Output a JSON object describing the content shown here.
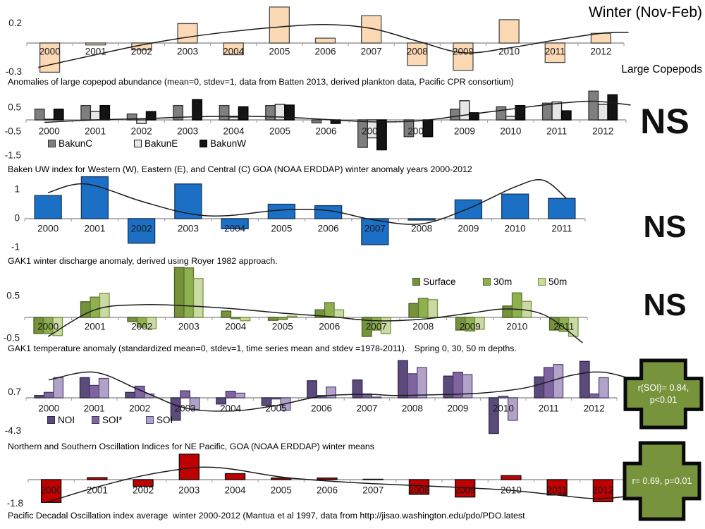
{
  "page": {
    "title": "Winter (Nov-Feb)",
    "series_label": "Large Copepods"
  },
  "chart_data": [
    {
      "id": "copepods",
      "type": "bar",
      "caption": "Anomalies of large copepod abundance (mean=0, stdev=1, data from Batten 2013, derived plankton data, Pacific CPR consortium)",
      "categories": [
        "2000",
        "2001",
        "2002",
        "2003",
        "2004",
        "2005",
        "2006",
        "2007",
        "2008",
        "2009",
        "2010",
        "2011",
        "2012"
      ],
      "series": [
        {
          "color": "#FBD9B4",
          "border": "#4D4D4D",
          "values": [
            -0.3,
            -0.02,
            -0.07,
            0.2,
            -0.12,
            0.37,
            0.05,
            0.28,
            -0.23,
            -0.28,
            0.24,
            -0.2,
            0.1
          ]
        }
      ],
      "yticks": [
        {
          "label": "0.2",
          "value": 0.2
        },
        {
          "label": "-0.3",
          "value": -0.3
        }
      ],
      "ylim": [
        -0.38,
        0.42
      ],
      "trend": [
        [
          1999.75,
          -0.25
        ],
        [
          2001,
          -0.12
        ],
        [
          2002,
          -0.02
        ],
        [
          2003,
          0.06
        ],
        [
          2004,
          0.12
        ],
        [
          2005,
          0.165
        ],
        [
          2006,
          0.19
        ],
        [
          2007,
          0.15
        ],
        [
          2008,
          0.02
        ],
        [
          2009,
          -0.1
        ],
        [
          2010,
          -0.05
        ],
        [
          2011,
          0.03
        ],
        [
          2012,
          0.1
        ],
        [
          2012.6,
          0.11
        ]
      ]
    },
    {
      "id": "bakun",
      "type": "bar",
      "caption": "Baken UW index for Western (W), Eastern (E), and Central (C) GOA (NOAA ERDDAP) winter anomaly years 2000-2012",
      "annotation": "NS",
      "categories": [
        "2000",
        "2001",
        "2002",
        "2003",
        "2004",
        "2005",
        "2006",
        "2007",
        "2008",
        "2009",
        "2010",
        "2011",
        "2012"
      ],
      "series": [
        {
          "name": "BakunC",
          "color": "#7F7F7F",
          "border": "#333333",
          "values": [
            0.45,
            0.6,
            0.25,
            0.6,
            0.6,
            0.6,
            -0.12,
            -1.15,
            -0.7,
            0.45,
            0.55,
            0.7,
            1.2
          ]
        },
        {
          "name": "BakunE",
          "color": "#E6E6E6",
          "border": "#1a1a1a",
          "values": [
            0.03,
            0.35,
            -0.15,
            0,
            0.12,
            0.65,
            0,
            -0.75,
            0,
            0.8,
            0.15,
            0.75,
            0.65
          ]
        },
        {
          "name": "BakunW",
          "color": "#141414",
          "border": "#000000",
          "values": [
            0.45,
            0.6,
            0.35,
            0.85,
            0.55,
            0.62,
            -0.15,
            -1.25,
            -0.7,
            0.3,
            0.6,
            0.38,
            1.05
          ]
        }
      ],
      "yticks": [
        {
          "label": "0.5",
          "value": 0.5
        },
        {
          "label": "-0.5",
          "value": -0.5
        },
        {
          "label": "-1.5",
          "value": -1.5
        }
      ],
      "ylim": [
        -1.6,
        1.35
      ],
      "trend": [
        [
          1999.9,
          -0.1
        ],
        [
          2001,
          0.0
        ],
        [
          2002,
          0.05
        ],
        [
          2003,
          0.12
        ],
        [
          2004,
          0.15
        ],
        [
          2005,
          0.12
        ],
        [
          2006,
          0.02
        ],
        [
          2007,
          -0.08
        ],
        [
          2008,
          -0.04
        ],
        [
          2009,
          0.2
        ],
        [
          2010,
          0.45
        ],
        [
          2011,
          0.68
        ],
        [
          2011.8,
          0.78
        ],
        [
          2012.6,
          0.62
        ]
      ]
    },
    {
      "id": "uw",
      "type": "bar",
      "caption": "GAK1 winter discharge anomaly, derived using Royer 1982 approach.",
      "annotation": "NS",
      "categories": [
        "2000",
        "2001",
        "2002",
        "2003",
        "2004",
        "2005",
        "2006",
        "2007",
        "2008",
        "2009",
        "2010",
        "2011"
      ],
      "series": [
        {
          "color": "#1B70C6",
          "border": "#16365C",
          "values": [
            0.8,
            1.45,
            -0.85,
            1.2,
            -0.35,
            0.5,
            0.45,
            -0.9,
            -0.05,
            0.65,
            0.85,
            0.7
          ]
        }
      ],
      "yticks": [
        {
          "label": "1",
          "value": 1
        },
        {
          "label": "0",
          "value": 0
        },
        {
          "label": "-1",
          "value": -1
        }
      ],
      "ylim": [
        -1.05,
        1.5
      ],
      "trend": [
        [
          2000,
          0.9
        ],
        [
          2000.8,
          1.2
        ],
        [
          2002,
          0.6
        ],
        [
          2003,
          0.18
        ],
        [
          2003.8,
          0.1
        ],
        [
          2005,
          0.3
        ],
        [
          2006,
          0.28
        ],
        [
          2007,
          -0.05
        ],
        [
          2008,
          -0.18
        ],
        [
          2009,
          0.35
        ],
        [
          2010,
          1.1
        ],
        [
          2010.6,
          1.33
        ],
        [
          2011.1,
          0.7
        ]
      ]
    },
    {
      "id": "temp",
      "type": "bar",
      "caption": "GAK1 temperature anomaly (standardized mean=0, stdev=1, time series mean and stdev =1978-2011).   Spring 0, 30, 50 m depths.",
      "annotation": "NS",
      "categories": [
        "2000",
        "2001",
        "2002",
        "2003",
        "2004",
        "2005",
        "2006",
        "2007",
        "2008",
        "2009",
        "2010",
        "2011"
      ],
      "series": [
        {
          "name": "Surface",
          "color": "#76933C",
          "border": "#4A5E24",
          "values": [
            -0.38,
            0.37,
            -0.1,
            1.18,
            0.15,
            -0.07,
            0.18,
            -0.45,
            0.33,
            -0.3,
            0.27,
            -0.3
          ]
        },
        {
          "name": "30m",
          "color": "#8FB04E",
          "border": "#5B7430",
          "values": [
            -0.38,
            0.48,
            -0.23,
            1.17,
            -0.03,
            -0.05,
            0.35,
            -0.3,
            0.45,
            -0.32,
            0.58,
            -0.33
          ]
        },
        {
          "name": "50m",
          "color": "#CBDAA4",
          "border": "#77933C",
          "values": [
            -0.43,
            0.57,
            -0.27,
            0.92,
            -0.08,
            0.03,
            0.18,
            -0.38,
            0.42,
            -0.28,
            0.38,
            -0.45
          ]
        }
      ],
      "yticks": [
        {
          "label": "0.5",
          "value": 0.5
        },
        {
          "label": "-0.5",
          "value": -0.5
        }
      ],
      "ylim": [
        -0.55,
        1.25
      ],
      "trend": [
        [
          2000,
          -0.45
        ],
        [
          2001,
          0.18
        ],
        [
          2002,
          0.3
        ],
        [
          2003,
          0.27
        ],
        [
          2004,
          0.2
        ],
        [
          2005,
          0.1
        ],
        [
          2006,
          0.02
        ],
        [
          2007,
          -0.08
        ],
        [
          2008,
          -0.04
        ],
        [
          2009,
          0.1
        ],
        [
          2009.8,
          0.2
        ],
        [
          2010.6,
          0.05
        ],
        [
          2011.4,
          -0.6
        ]
      ]
    },
    {
      "id": "osc",
      "type": "bar",
      "caption": "Northern and Southern Oscillation Indices for NE Pacific, GOA (NOAA ERDDAP) winter means",
      "annotation_badge": {
        "lines": [
          "r(SOI)= 0.84,",
          "p<0.01"
        ],
        "color": "#77933C"
      },
      "categories": [
        "2000",
        "2001",
        "2002",
        "2003",
        "2004",
        "2005",
        "2006",
        "2007",
        "2008",
        "2009",
        "2010",
        "2011",
        "2012"
      ],
      "series": [
        {
          "name": "NOI",
          "color": "#5D4A7D",
          "border": "#32284A",
          "values": [
            0.3,
            2.6,
            0.7,
            -2.9,
            -0.8,
            -1.0,
            2.2,
            2.3,
            4.8,
            2.8,
            -4.6,
            2.7,
            4.7
          ]
        },
        {
          "name": "SOI*",
          "color": "#8064A2",
          "border": "#433A5C",
          "values": [
            0.7,
            1.6,
            1.5,
            0.9,
            0.85,
            -0.15,
            0.3,
            0.5,
            3.1,
            3.3,
            0.2,
            3.9,
            0.5
          ]
        },
        {
          "name": "SOI",
          "color": "#B3A2C8",
          "border": "#57497A",
          "values": [
            2.6,
            2.5,
            0.5,
            -1.5,
            0.6,
            -1.6,
            1.4,
            0.1,
            3.9,
            3.0,
            -2.9,
            4.3,
            2.6
          ]
        }
      ],
      "yticks": [
        {
          "label": "0.7",
          "value": 0.7
        },
        {
          "label": "-4.3",
          "value": -4.3
        }
      ],
      "ylim": [
        -4.9,
        5.0
      ],
      "trend": [
        [
          2000,
          2.3
        ],
        [
          2001,
          3.3
        ],
        [
          2002,
          1.0
        ],
        [
          2003,
          -1.3
        ],
        [
          2004,
          -1.7
        ],
        [
          2005,
          -1.0
        ],
        [
          2006,
          0.2
        ],
        [
          2007,
          0.45
        ],
        [
          2007.6,
          0.3
        ],
        [
          2008.5,
          0.4
        ],
        [
          2009.5,
          0.6
        ],
        [
          2010.5,
          1.3
        ],
        [
          2011.5,
          2.9
        ],
        [
          2012.2,
          3.3
        ],
        [
          2012.9,
          2.3
        ]
      ]
    },
    {
      "id": "pdo",
      "type": "bar",
      "caption": "Pacific Decadal Oscillation index average  winter 2000-2012 (Mantua et al 1997, data from http://jisao.washington.edu/pdo/PDO.latest",
      "annotation_badge": {
        "lines": [
          "r= 0.69, p=0.01"
        ],
        "color": "#77933C"
      },
      "categories": [
        "2000",
        "2001",
        "2002",
        "2003",
        "2004",
        "2005",
        "2006",
        "2007",
        "2008",
        "2009",
        "2010",
        "2011",
        "2012"
      ],
      "series": [
        {
          "color": "#C00000",
          "border": "#0d0d0d",
          "values": [
            -1.7,
            0.15,
            -0.5,
            1.9,
            0.45,
            0.12,
            0.12,
            0.03,
            -1.1,
            -1.3,
            0.3,
            -1.15,
            -1.65
          ]
        }
      ],
      "yticks": [
        {
          "label": "-1.8",
          "value": -1.8
        }
      ],
      "ylim": [
        -1.9,
        2.0
      ],
      "trend": [
        [
          1999.9,
          -1.7
        ],
        [
          2001,
          -0.55
        ],
        [
          2002,
          0.3
        ],
        [
          2003,
          0.85
        ],
        [
          2003.5,
          0.92
        ],
        [
          2004,
          0.75
        ],
        [
          2005,
          0.2
        ],
        [
          2006,
          -0.1
        ],
        [
          2007,
          -0.3
        ],
        [
          2008,
          -0.45
        ],
        [
          2009,
          -0.6
        ],
        [
          2010,
          -0.8
        ],
        [
          2011,
          -1.15
        ],
        [
          2011.9,
          -1.42
        ],
        [
          2012.9,
          -1.1
        ]
      ]
    }
  ]
}
